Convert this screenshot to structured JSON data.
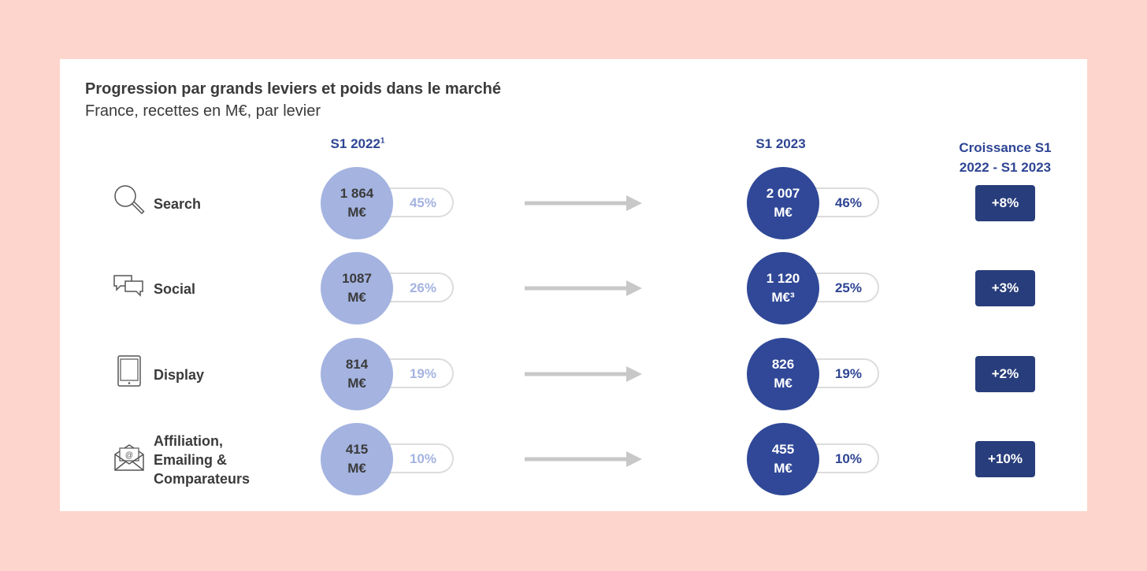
{
  "title": "Progression par grands leviers et poids dans le marché",
  "subtitle": "France, recettes en M€, par levier",
  "columns": {
    "s1_2022": "S1 2022",
    "s1_2022_sup": "1",
    "s1_2023": "S1 2023",
    "growth_line1": "Croissance S1",
    "growth_line2": "2022 - S1 2023"
  },
  "colors": {
    "s1_2022": "#a4b3e0",
    "s1_2023": "#304897",
    "badge": "#283d7b",
    "arrow": "#c8c8c8",
    "background": "#fdd5cc"
  },
  "chart_data": {
    "type": "table",
    "title": "Progression par grands leviers et poids dans le marché",
    "subtitle": "France, recettes en M€, par levier",
    "rows": [
      {
        "lever": "Search",
        "icon": "magnifier-icon",
        "value_2022": "1 864",
        "unit_2022": "M€",
        "share_2022": "45%",
        "value_2023": "2 007",
        "unit_2023": "M€",
        "share_2023": "46%",
        "growth": "+8%"
      },
      {
        "lever": "Social",
        "icon": "chat-bubbles-icon",
        "value_2022": "1087",
        "unit_2022": "M€",
        "share_2022": "26%",
        "value_2023": "1 120",
        "unit_2023": "M€³",
        "share_2023": "25%",
        "growth": "+3%"
      },
      {
        "lever": "Display",
        "icon": "tablet-icon",
        "value_2022": "814",
        "unit_2022": "M€",
        "share_2022": "19%",
        "value_2023": "826",
        "unit_2023": "M€",
        "share_2023": "19%",
        "growth": "+2%"
      },
      {
        "lever": "Affiliation,\nEmailing &\nComparateurs",
        "icon": "email-icon",
        "value_2022": "415",
        "unit_2022": "M€",
        "share_2022": "10%",
        "value_2023": "455",
        "unit_2023": "M€",
        "share_2023": "10%",
        "growth": "+10%"
      }
    ]
  }
}
